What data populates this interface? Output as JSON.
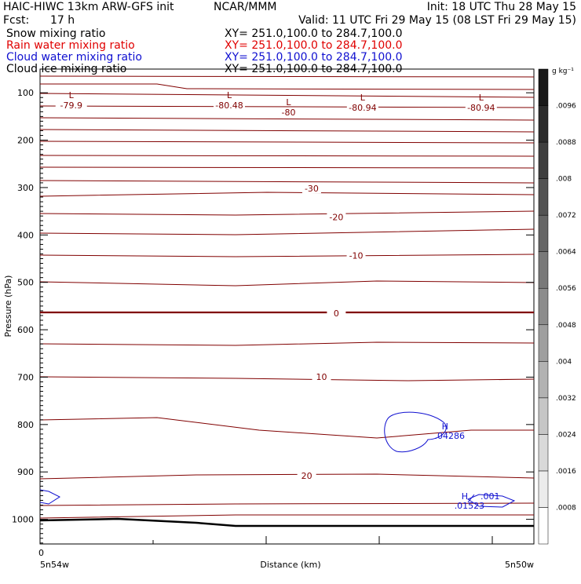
{
  "header": {
    "title": "HAIC-HIWC 13km ARW-GFS init",
    "org": "NCAR/MMM",
    "init": "Init: 18 UTC Thu 28 May 15",
    "fcst_label": "Fcst:",
    "fcst_value": "17 h",
    "valid": "Valid: 11 UTC Fri 29 May 15 (08 LST Fri 29 May 15)",
    "fields": [
      {
        "name": "Snow mixing ratio",
        "xy": "XY= 251.0,100.0 to 284.7,100.0",
        "color": "#000000"
      },
      {
        "name": "Rain water mixing ratio",
        "xy": "XY= 251.0,100.0 to 284.7,100.0",
        "color": "#e00000"
      },
      {
        "name": "Cloud water mixing ratio",
        "xy": "XY= 251.0,100.0 to 284.7,100.0",
        "color": "#1010d0"
      },
      {
        "name": "Cloud ice mixing ratio",
        "xy": "XY= 251.0,100.0 to 284.7,100.0",
        "color": "#000000"
      }
    ]
  },
  "chart_data": {
    "type": "contour",
    "ylabel": "Pressure (hPa)",
    "xlabel": "Distance (km)",
    "x_start_label": "5n54w",
    "x_end_label": "5n50w",
    "x_zero_label": "0",
    "yticks": [
      100,
      200,
      300,
      400,
      500,
      600,
      700,
      800,
      900,
      1000
    ],
    "ylim": [
      1052,
      50
    ],
    "temperature_contour_labels": [
      {
        "text": "-30",
        "x": 0.55,
        "p": 302
      },
      {
        "text": "-20",
        "x": 0.6,
        "p": 362
      },
      {
        "text": "-10",
        "x": 0.64,
        "p": 443
      },
      {
        "text": "0",
        "x": 0.6,
        "p": 565
      },
      {
        "text": "10",
        "x": 0.57,
        "p": 699
      },
      {
        "text": "20",
        "x": 0.54,
        "p": 908
      }
    ],
    "minima": [
      {
        "label": "L",
        "value": "-79.9",
        "x": 0.06,
        "p": 88
      },
      {
        "label": "L",
        "value": "-80.48",
        "x": 0.38,
        "p": 88
      },
      {
        "label": "L",
        "value": "-80",
        "x": 0.5,
        "p": 103
      },
      {
        "label": "L",
        "value": "-80.94",
        "x": 0.65,
        "p": 93
      },
      {
        "label": "L",
        "value": "-80.94",
        "x": 0.89,
        "p": 93
      }
    ],
    "cloud_water_maxima": [
      {
        "label": "H",
        "value": ".04286",
        "x": 0.82,
        "p": 810
      },
      {
        "label": "H",
        "value": ".01523",
        "x": 0.86,
        "p": 958
      }
    ],
    "cloud_water_contour_label": ".001",
    "colorbar": {
      "unit": "g kg⁻¹",
      "levels": [
        ".0008",
        ".0016",
        ".0024",
        ".0032",
        ".004",
        ".0048",
        ".0056",
        ".0064",
        ".0072",
        ".008",
        ".0088",
        ".0096"
      ]
    }
  }
}
